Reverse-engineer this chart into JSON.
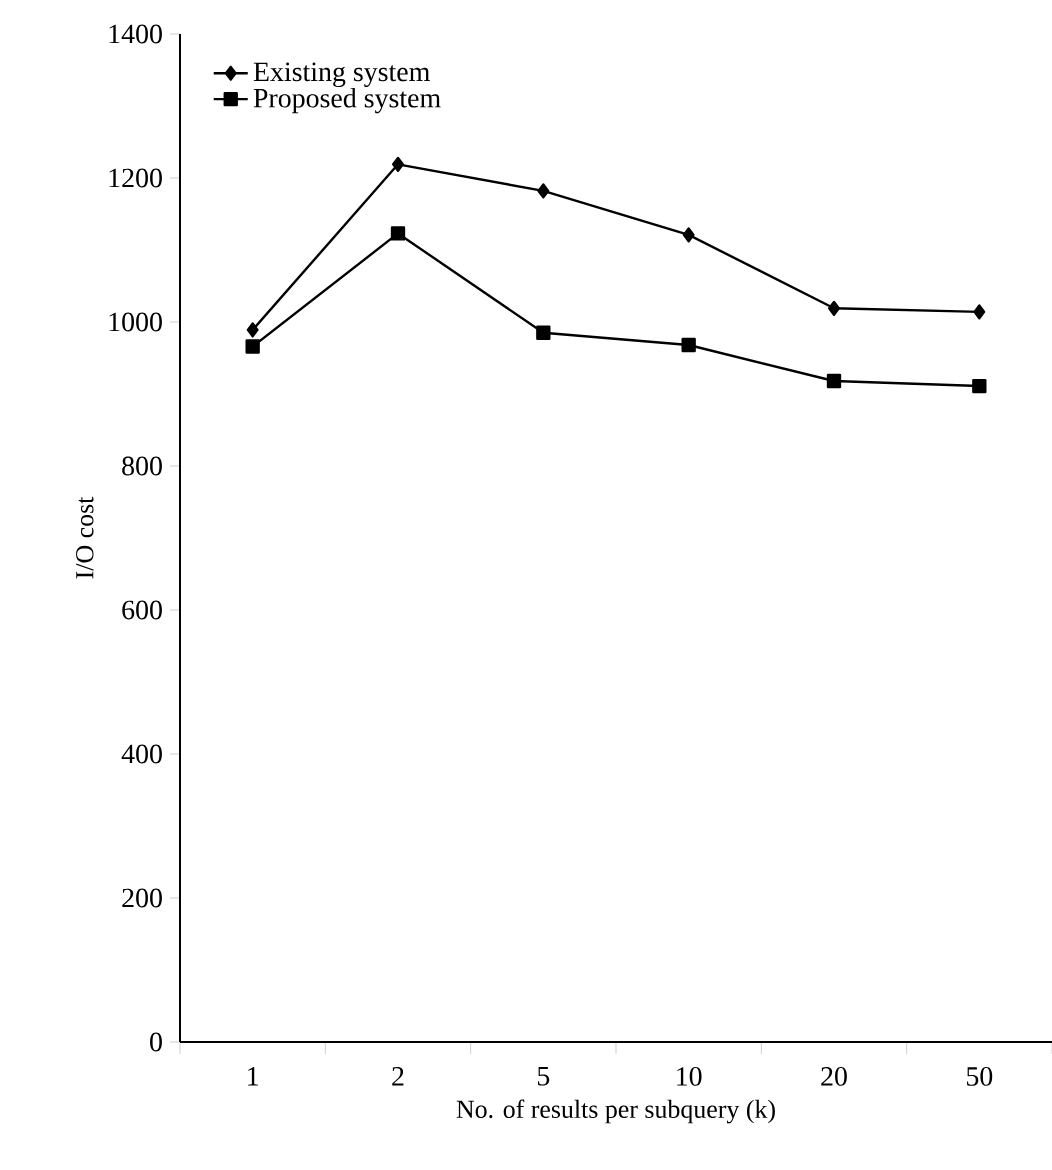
{
  "chart_data": {
    "type": "line",
    "xlabel": "No. of results per subquery (k)",
    "ylabel": "I/O cost",
    "categories": [
      "1",
      "2",
      "5",
      "10",
      "20",
      "50"
    ],
    "ylim": [
      0,
      1400
    ],
    "yticks": [
      0,
      200,
      400,
      600,
      800,
      1000,
      1200,
      1400
    ],
    "legend": "top left",
    "grid": false,
    "series": [
      {
        "name": "Existing system",
        "color": "#000000",
        "marker": "diamond",
        "values": [
          989,
          1219,
          1182,
          1121,
          1019,
          1014
        ]
      },
      {
        "name": "Proposed system",
        "color": "#000000",
        "marker": "square",
        "values": [
          966,
          1123,
          985,
          968,
          918,
          911
        ]
      }
    ]
  }
}
